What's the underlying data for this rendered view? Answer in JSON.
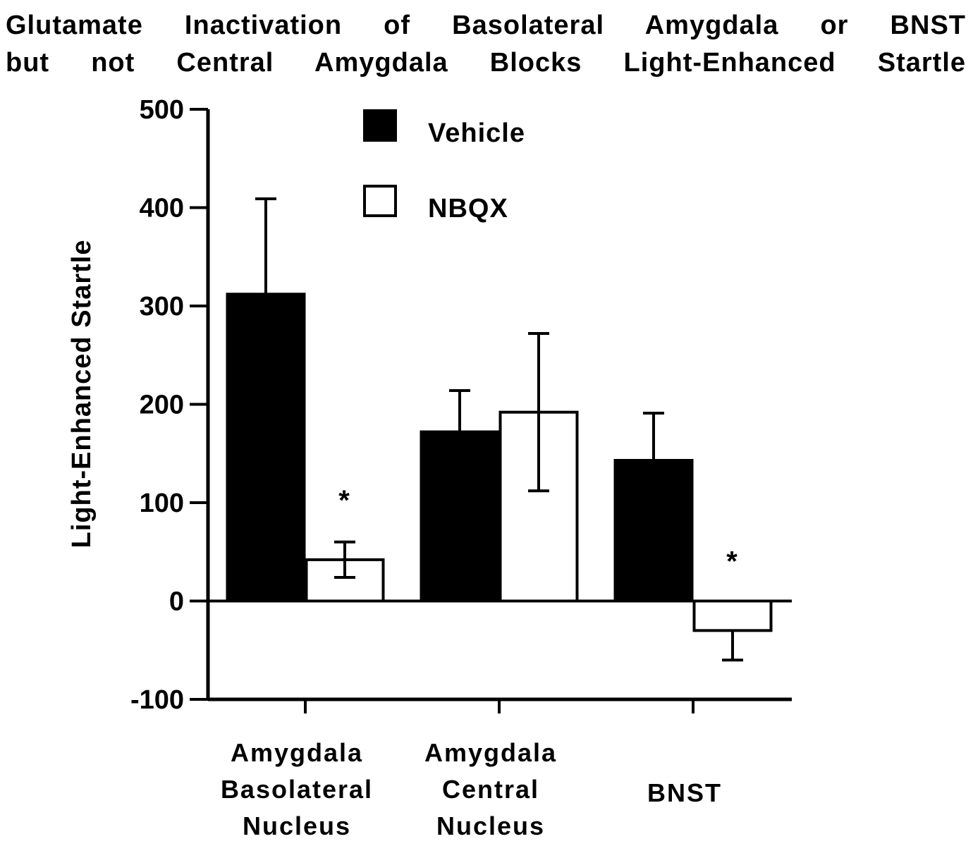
{
  "chart_data": {
    "type": "bar",
    "title_lines": [
      "Glutamate Inactivation of Basolateral Amygdala or BNST",
      "but not Central Amygdala Blocks Light-Enhanced Startle"
    ],
    "ylabel": "Light-Enhanced Startle",
    "xlabel": "",
    "ylim": [
      -100,
      500
    ],
    "yticks": [
      500,
      400,
      300,
      200,
      100,
      0,
      -100
    ],
    "categories": [
      [
        "Amygdala",
        "Basolateral",
        "Nucleus"
      ],
      [
        "Amygdala",
        "Central",
        "Nucleus"
      ],
      [
        "BNST"
      ]
    ],
    "series": [
      {
        "name": "Vehicle",
        "fill": "#000000",
        "values": [
          312,
          172,
          143
        ],
        "errors": [
          97,
          42,
          48
        ],
        "error_direction": [
          "up",
          "up",
          "up"
        ]
      },
      {
        "name": "NBQX",
        "fill": "#ffffff",
        "values": [
          42,
          192,
          -30
        ],
        "errors": [
          18,
          80,
          30
        ],
        "error_direction": [
          "both",
          "both",
          "down"
        ]
      }
    ],
    "annotations": [
      {
        "text": "*",
        "category_index": 0,
        "series_index": 1,
        "value": 110
      },
      {
        "text": "*",
        "category_index": 2,
        "series_index": 1,
        "value": 48
      }
    ],
    "legend_position": "top-center",
    "grid": false
  }
}
